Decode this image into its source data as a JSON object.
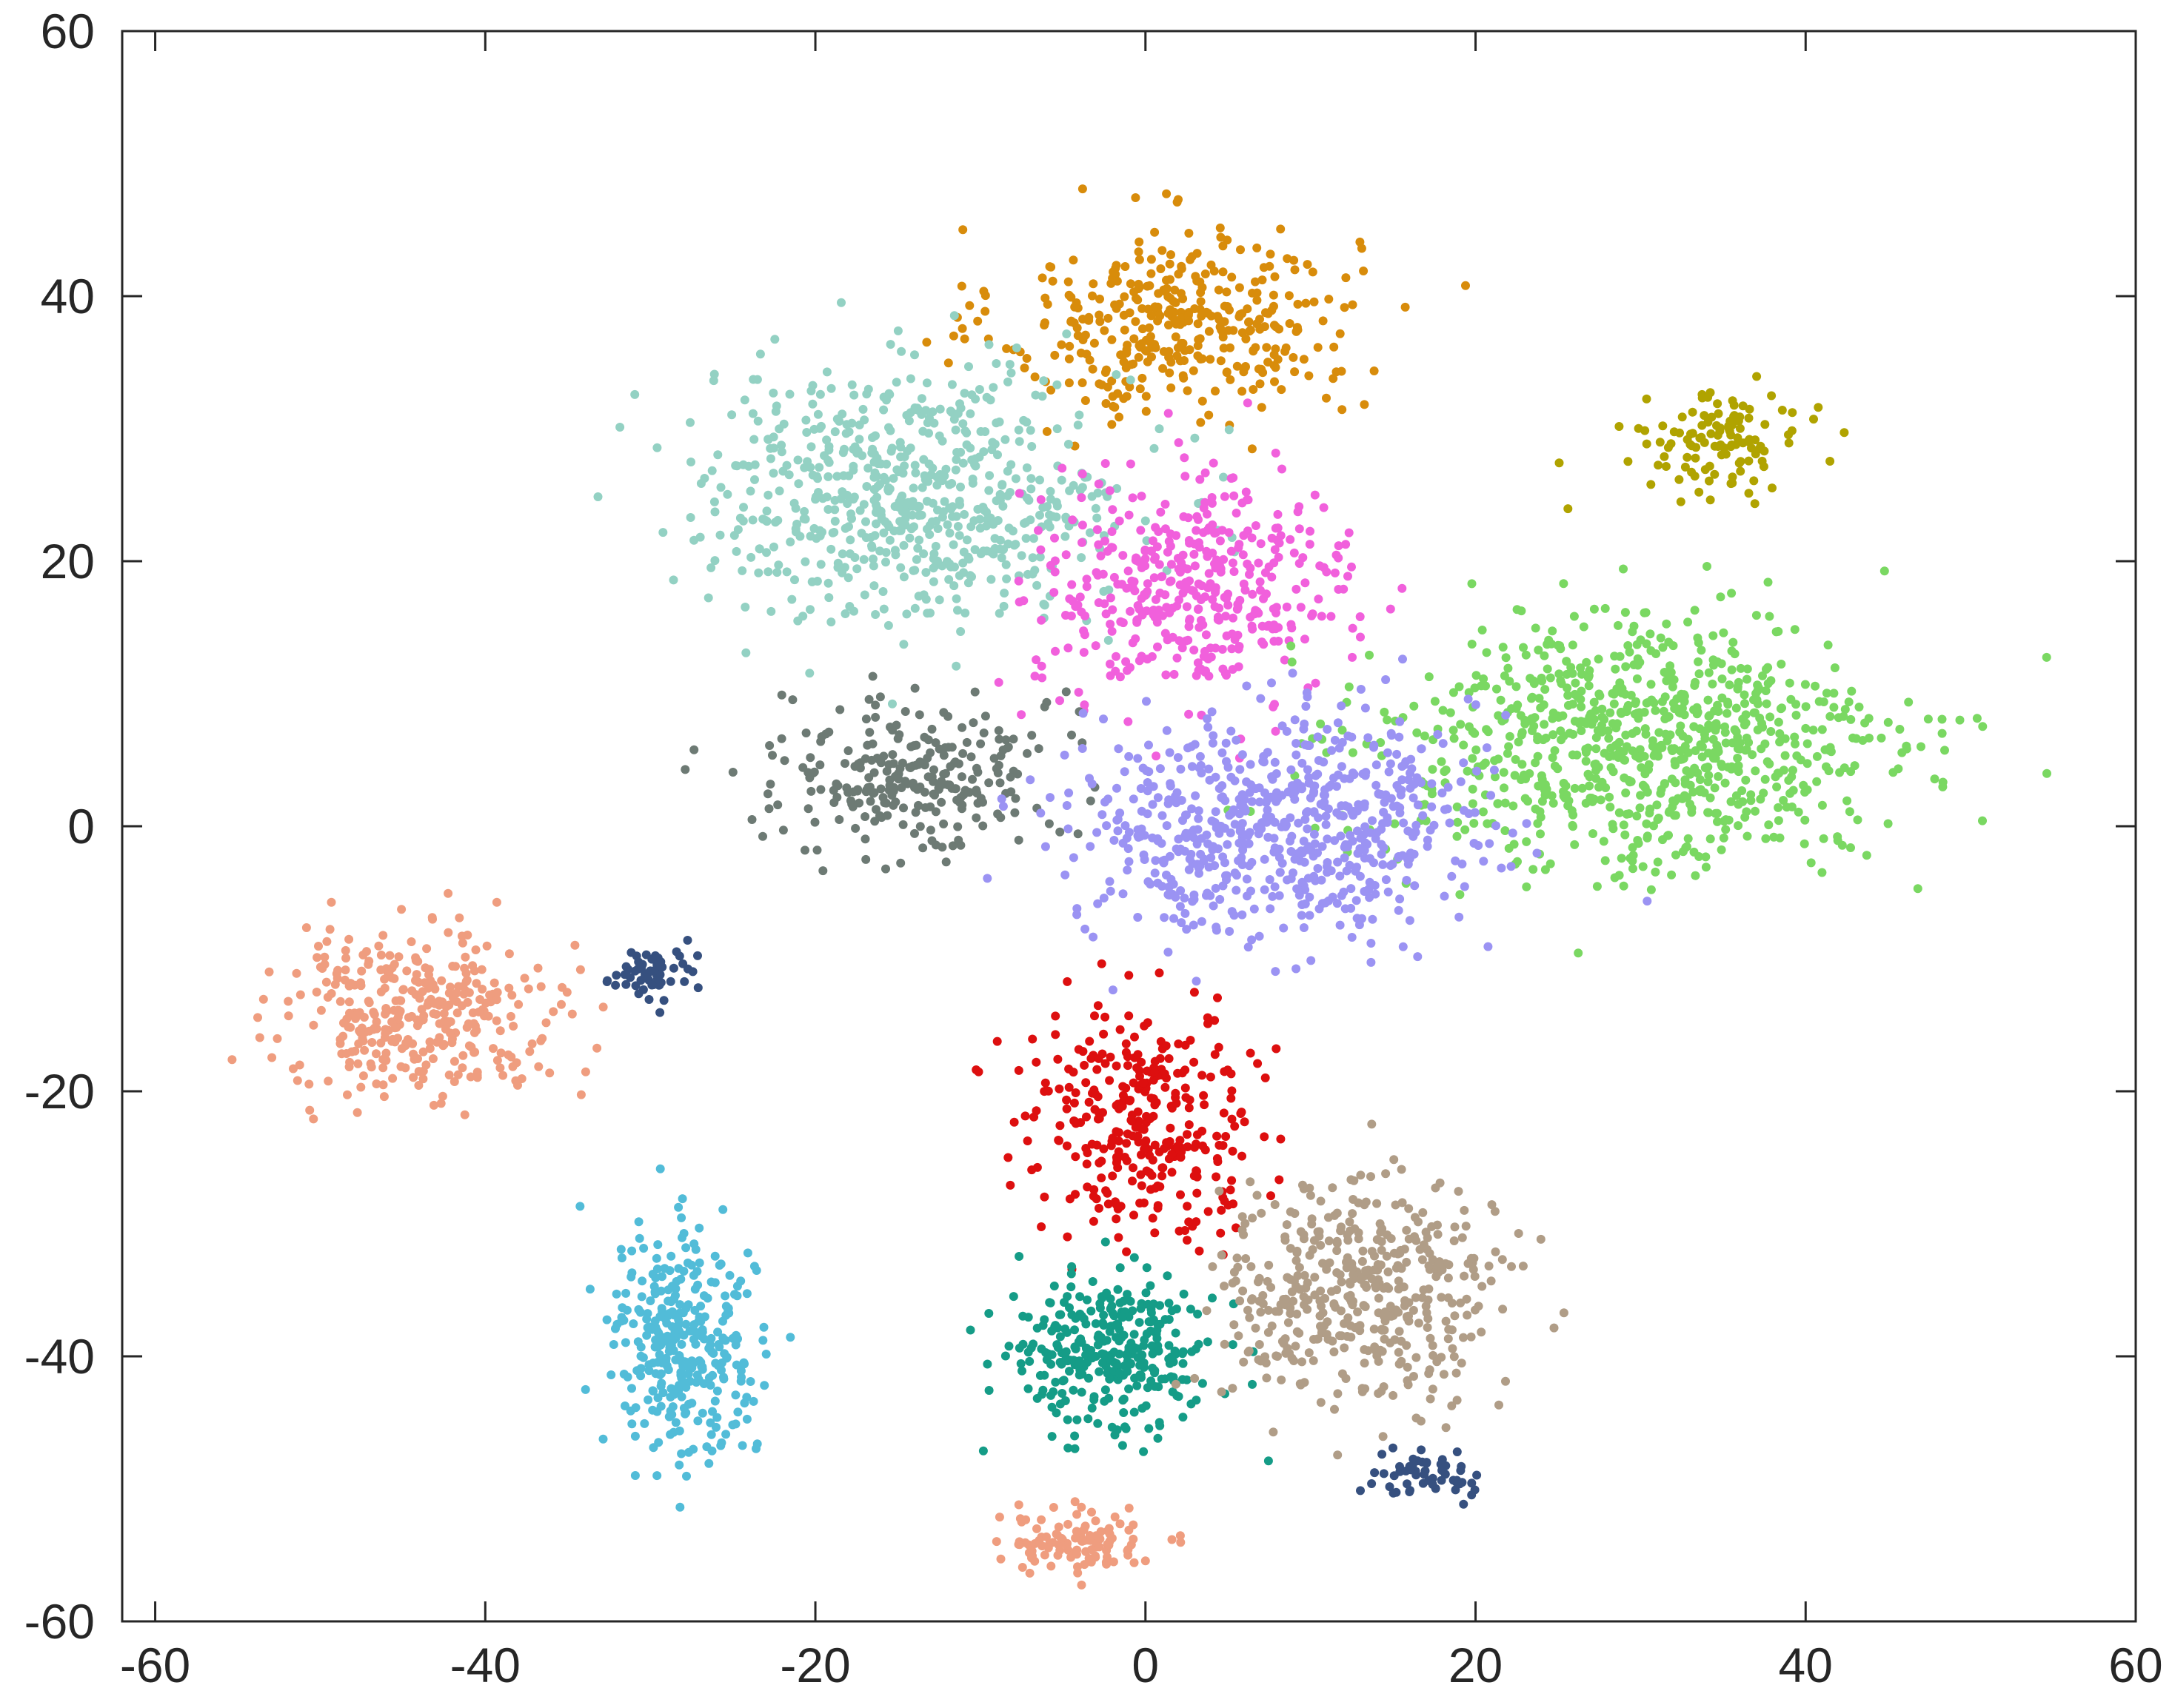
{
  "chart_data": {
    "type": "scatter",
    "title": "",
    "xlabel": "",
    "ylabel": "",
    "xlim": [
      -62,
      60
    ],
    "ylim": [
      -60,
      60
    ],
    "xticks": [
      -60,
      -40,
      -20,
      0,
      20,
      40,
      60
    ],
    "yticks": [
      -60,
      -40,
      -20,
      0,
      20,
      40,
      60
    ],
    "xtick_labels": [
      "-60",
      "-40",
      "-20",
      "0",
      "20",
      "40",
      "60"
    ],
    "ytick_labels": [
      "-60",
      "-40",
      "-20",
      "0",
      "20",
      "40",
      "60"
    ],
    "grid": false,
    "legend": "none",
    "clusters": [
      {
        "color": "#d88c0b",
        "approx_center": [
          2,
          38
        ],
        "approx_spread": [
          9,
          6
        ],
        "approx_points": 380
      },
      {
        "color": "#93d1c3",
        "approx_center": [
          -14,
          25
        ],
        "approx_spread": [
          11,
          8
        ],
        "approx_points": 650
      },
      {
        "color": "#f160dc",
        "approx_center": [
          3,
          18
        ],
        "approx_spread": [
          8,
          7
        ],
        "approx_points": 420
      },
      {
        "color": "#b0a300",
        "approx_center": [
          35,
          29
        ],
        "approx_spread": [
          4,
          3
        ],
        "approx_points": 120
      },
      {
        "color": "#7ad862",
        "approx_center": [
          30,
          6
        ],
        "approx_spread": [
          13,
          8
        ],
        "approx_points": 850
      },
      {
        "color": "#6d7a74",
        "approx_center": [
          -14,
          4
        ],
        "approx_spread": [
          7,
          5
        ],
        "approx_points": 270
      },
      {
        "color": "#9b93f3",
        "approx_center": [
          8,
          0
        ],
        "approx_spread": [
          10,
          7
        ],
        "approx_points": 650
      },
      {
        "color": "#dd0f0f",
        "approx_center": [
          0,
          -22
        ],
        "approx_spread": [
          6,
          7
        ],
        "approx_points": 330
      },
      {
        "color": "#ef9d7f",
        "approx_center": [
          -44,
          -14
        ],
        "approx_spread": [
          7,
          5
        ],
        "approx_points": 350
      },
      {
        "color": "#ef9d7f",
        "approx_center": [
          -4,
          -54
        ],
        "approx_spread": [
          4,
          2
        ],
        "approx_points": 110
      },
      {
        "color": "#36507f",
        "approx_center": [
          -30,
          -11
        ],
        "approx_spread": [
          2.5,
          1.5
        ],
        "approx_points": 60
      },
      {
        "color": "#36507f",
        "approx_center": [
          17,
          -49
        ],
        "approx_spread": [
          3,
          1.5
        ],
        "approx_points": 55
      },
      {
        "color": "#52bcd8",
        "approx_center": [
          -28,
          -39
        ],
        "approx_spread": [
          3.5,
          7
        ],
        "approx_points": 330
      },
      {
        "color": "#159c87",
        "approx_center": [
          -2,
          -40
        ],
        "approx_spread": [
          5,
          5
        ],
        "approx_points": 320
      },
      {
        "color": "#b09d87",
        "approx_center": [
          13,
          -35
        ],
        "approx_spread": [
          7,
          7
        ],
        "approx_points": 450
      }
    ]
  },
  "colors": {
    "axis": "#262626",
    "background": "#ffffff"
  }
}
